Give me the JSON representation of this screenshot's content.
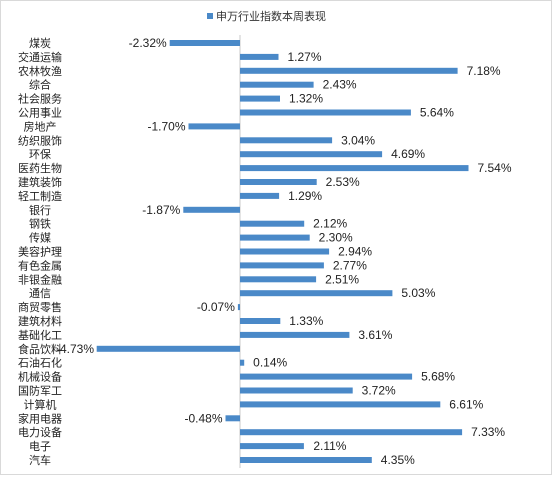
{
  "chart_data": {
    "type": "bar",
    "orientation": "horizontal",
    "title": "",
    "xlabel": "",
    "ylabel": "",
    "legend": {
      "position": "top",
      "entries": [
        "申万行业指数本周表现"
      ]
    },
    "series": [
      {
        "name": "申万行业指数本周表现",
        "color": "#4a89c8",
        "values": [
          -2.32,
          1.27,
          7.18,
          2.43,
          1.32,
          5.64,
          -1.7,
          3.04,
          4.69,
          7.54,
          2.53,
          1.29,
          -1.87,
          2.12,
          2.3,
          2.94,
          2.77,
          2.51,
          5.03,
          -0.07,
          1.33,
          3.61,
          -4.73,
          0.14,
          5.68,
          3.72,
          6.61,
          -0.48,
          7.33,
          2.11,
          4.35
        ]
      }
    ],
    "categories": [
      "煤炭",
      "交通运输",
      "农林牧渔",
      "综合",
      "社会服务",
      "公用事业",
      "房地产",
      "纺织服饰",
      "环保",
      "医药生物",
      "建筑装饰",
      "轻工制造",
      "银行",
      "钢铁",
      "传媒",
      "美容护理",
      "有色金属",
      "非银金融",
      "通信",
      "商贸零售",
      "建筑材料",
      "基础化工",
      "食品饮料",
      "石油石化",
      "机械设备",
      "国防军工",
      "计算机",
      "家用电器",
      "电力设备",
      "电子",
      "汽车"
    ],
    "value_labels": [
      "-2.32%",
      "1.27%",
      "7.18%",
      "2.43%",
      "1.32%",
      "5.64%",
      "-1.70%",
      "3.04%",
      "4.69%",
      "7.54%",
      "2.53%",
      "1.29%",
      "-1.87%",
      "2.12%",
      "2.30%",
      "2.94%",
      "2.77%",
      "2.51%",
      "5.03%",
      "-0.07%",
      "1.33%",
      "3.61%",
      "-4.73%",
      "0.14%",
      "5.68%",
      "3.72%",
      "6.61%",
      "-0.48%",
      "7.33%",
      "2.11%",
      "4.35%"
    ],
    "xlim": [
      -4.73,
      7.54
    ],
    "grid": false
  }
}
